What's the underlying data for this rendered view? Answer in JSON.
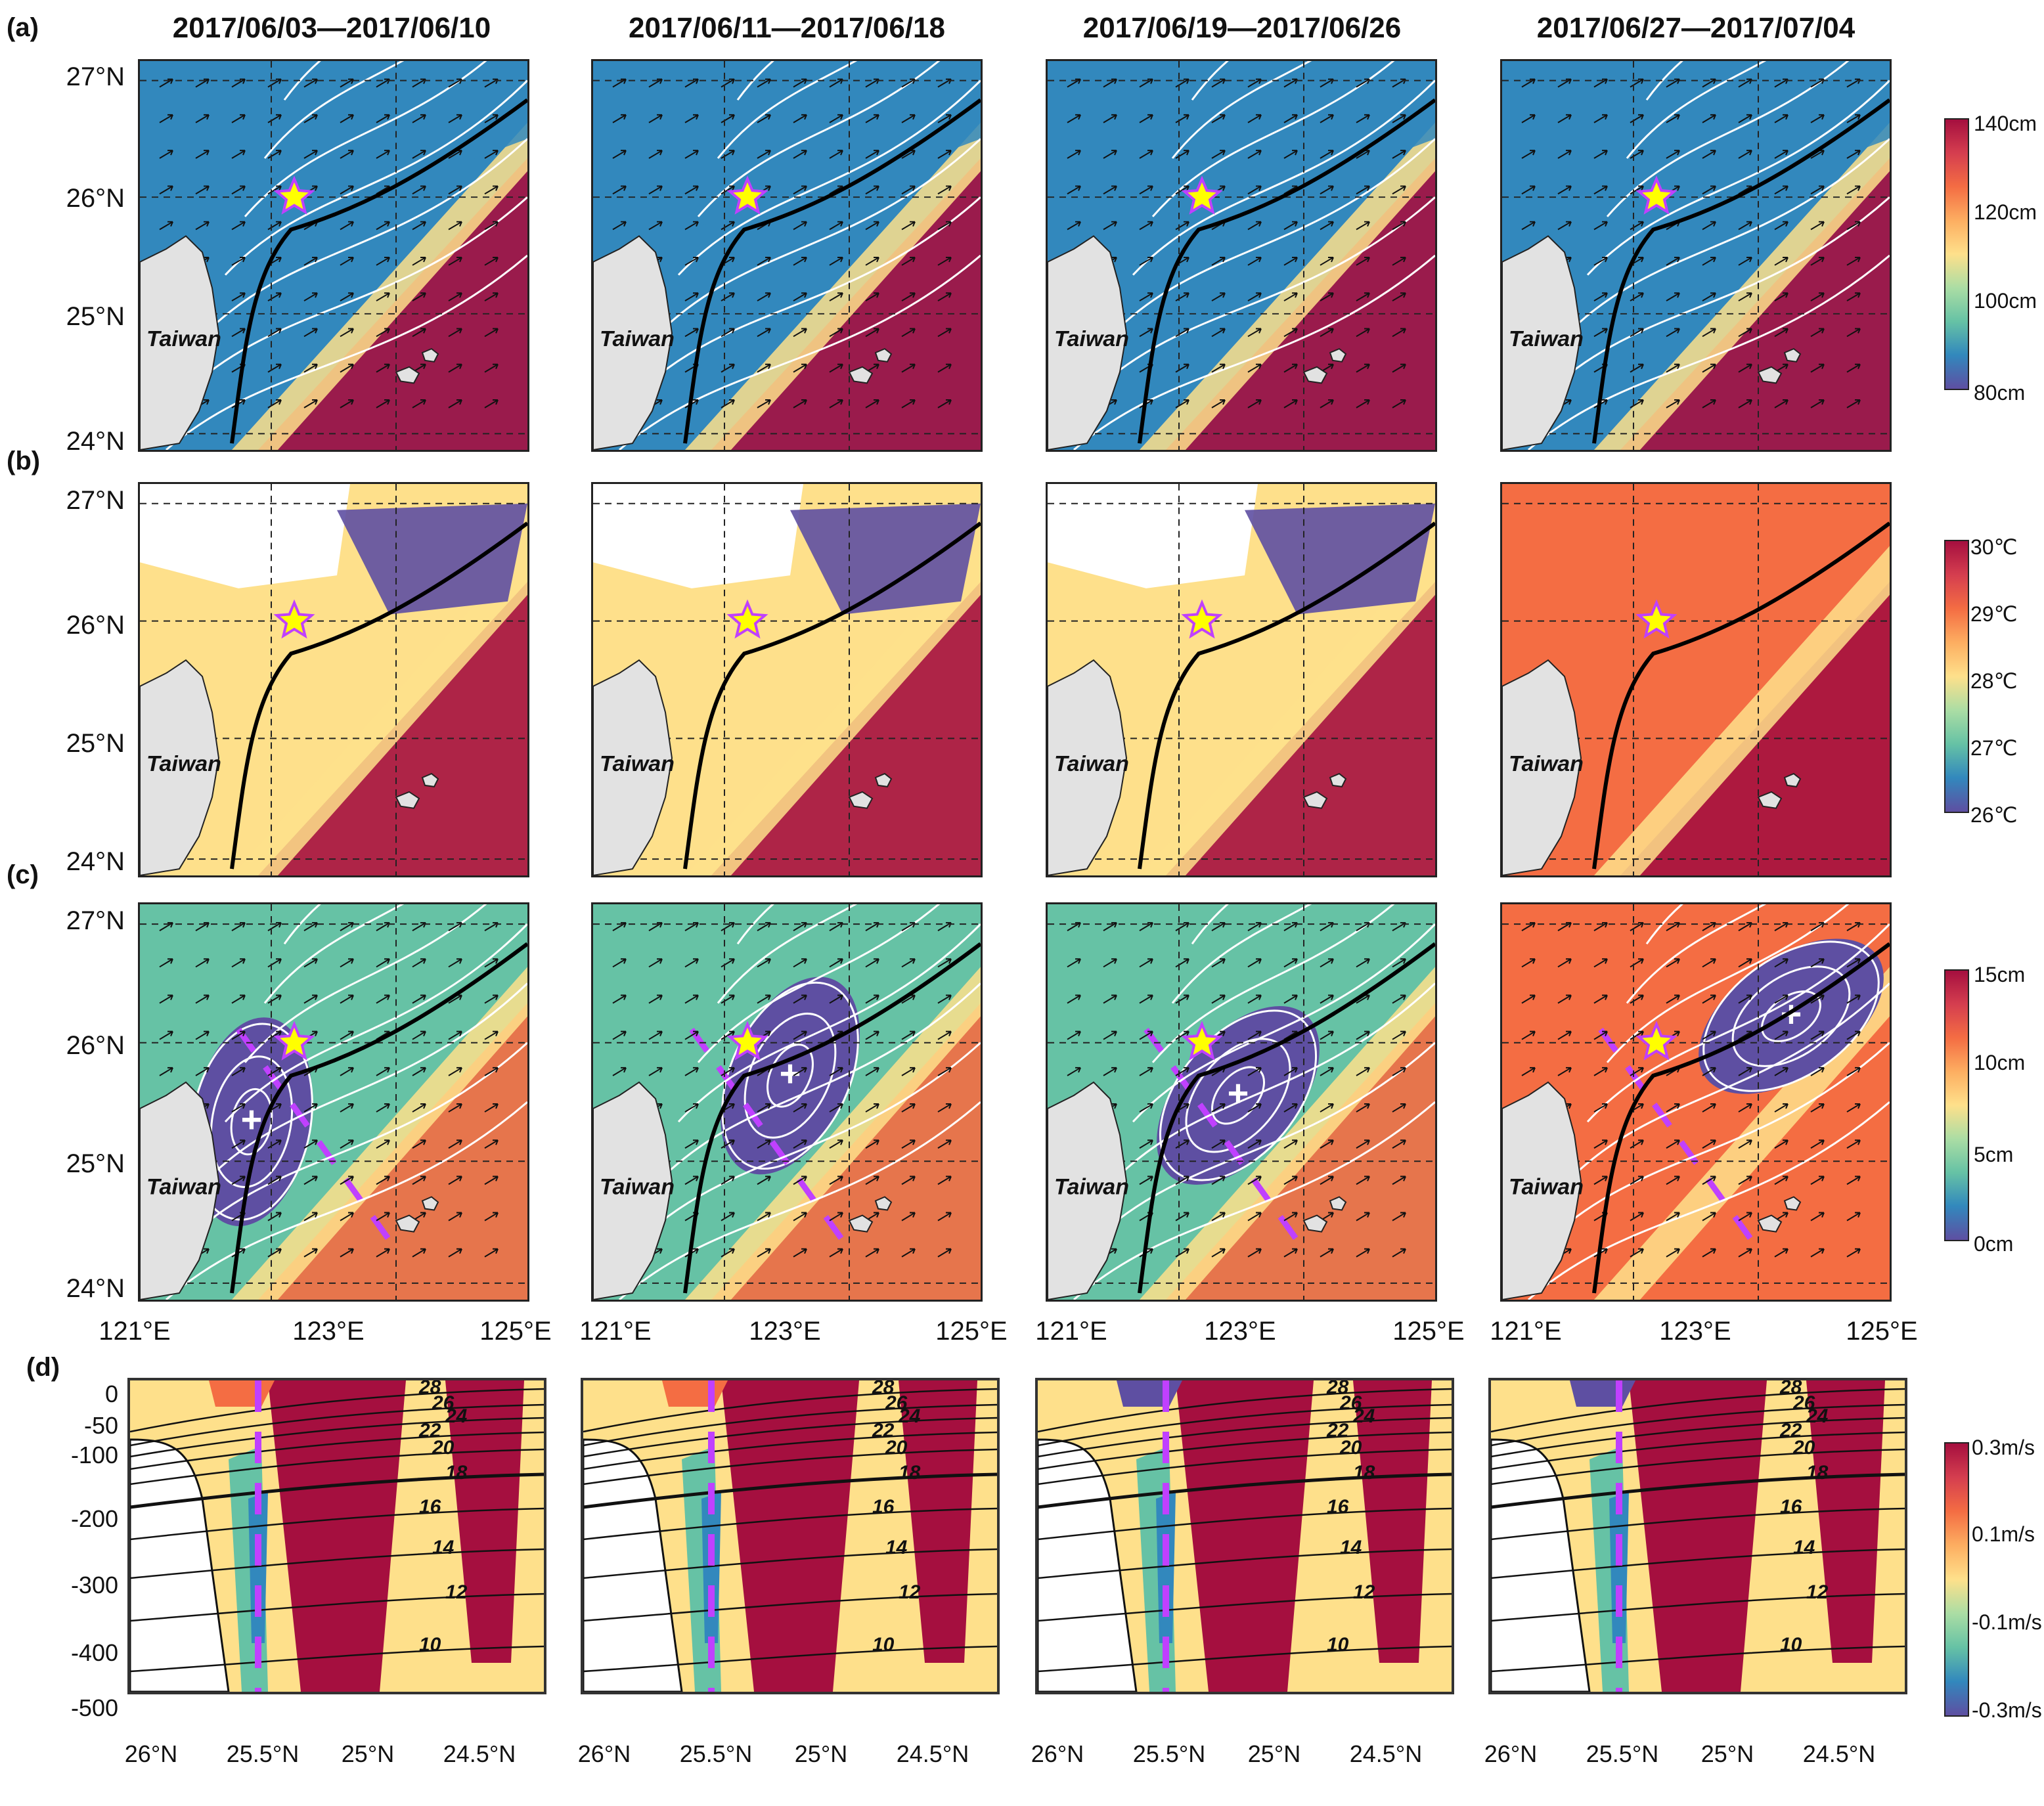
{
  "columns": [
    {
      "title": "2017/06/03—2017/06/10"
    },
    {
      "title": "2017/06/11—2017/06/18"
    },
    {
      "title": "2017/06/19—2017/06/26"
    },
    {
      "title": "2017/06/27—2017/07/04"
    }
  ],
  "row_labels": {
    "a": "(a)",
    "b": "(b)",
    "c": "(c)",
    "d": "(d)"
  },
  "lat_ticks": [
    "27°N",
    "26°N",
    "25°N",
    "24°N"
  ],
  "lon_ticks": [
    "121°E",
    "123°E",
    "125°E"
  ],
  "island_label": "Taiwan",
  "colorbars": {
    "a": {
      "ticks": [
        "140cm",
        "120cm",
        "100cm",
        "80cm"
      ]
    },
    "b": {
      "ticks": [
        "30℃",
        "29℃",
        "28℃",
        "27℃",
        "26℃"
      ]
    },
    "c": {
      "ticks": [
        "15cm",
        "10cm",
        "5cm",
        "0cm"
      ]
    },
    "d": {
      "ticks": [
        "0.3m/s",
        "0.1m/s",
        "-0.1m/s",
        "-0.3m/s"
      ]
    }
  },
  "section": {
    "depth_ticks": [
      "0",
      "-50",
      "-100",
      "-200",
      "-300",
      "-400",
      "-500"
    ],
    "x_ticks": [
      "26°N",
      "25.5°N",
      "25°N",
      "24.5°N"
    ],
    "isotherm_labels": [
      "28",
      "26",
      "24",
      "22",
      "20",
      "18",
      "16",
      "14",
      "12",
      "10"
    ]
  },
  "colors": {
    "high": "#a50f3f",
    "mid_high": "#f46d43",
    "mid": "#fee08b",
    "mid_low": "#66c2a5",
    "low": "#3288bd",
    "lowest": "#5e4fa2",
    "land": "#e2e2e2",
    "star_fill": "#ffff00",
    "star_edge": "#c040ff",
    "section_line": "#c040ff"
  },
  "markers": {
    "star": "star-marker",
    "cyclone": "+"
  }
}
